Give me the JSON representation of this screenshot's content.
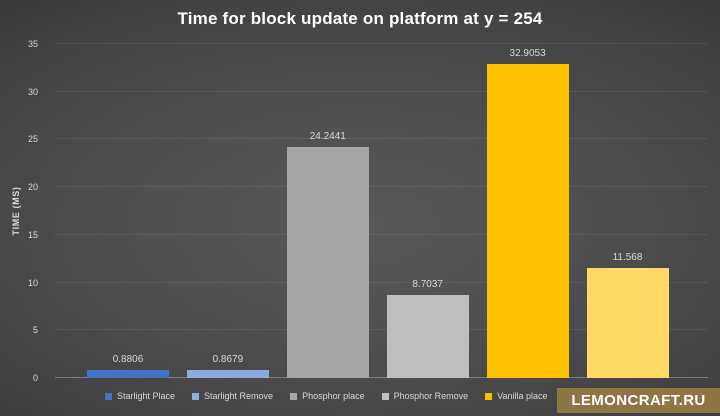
{
  "title": "Time for block update on platform at y = 254",
  "watermark": "LEMONCRAFT.RU",
  "colors": {
    "background_center": "#585858",
    "background_edge": "#222222",
    "text_primary": "#ffffff",
    "text_secondary": "#d9d9d9",
    "watermark_background": "#8e7544"
  },
  "chart_data": {
    "type": "bar",
    "title": "Time for block update on platform at y = 254",
    "xlabel": "",
    "ylabel": "TIME (MS)",
    "ylim": [
      0,
      35
    ],
    "yticks": [
      0,
      5,
      10,
      15,
      20,
      25,
      30,
      35
    ],
    "grid": true,
    "legend_position": "bottom",
    "series": [
      {
        "name": "Starlight Place",
        "value": 0.8806,
        "label": "0.8806",
        "color": "#4472C4"
      },
      {
        "name": "Starlight Remove",
        "value": 0.8679,
        "label": "0.8679",
        "color": "#8FAADC"
      },
      {
        "name": "Phosphor place",
        "value": 24.2441,
        "label": "24.2441",
        "color": "#A6A6A6"
      },
      {
        "name": "Phosphor Remove",
        "value": 8.7037,
        "label": "8.7037",
        "color": "#BFBFBF"
      },
      {
        "name": "Vanilla place",
        "value": 32.9053,
        "label": "32.9053",
        "color": "#FFC000"
      },
      {
        "name": "",
        "value": 11.568,
        "label": "11.568",
        "color": "#FFD966"
      }
    ]
  }
}
